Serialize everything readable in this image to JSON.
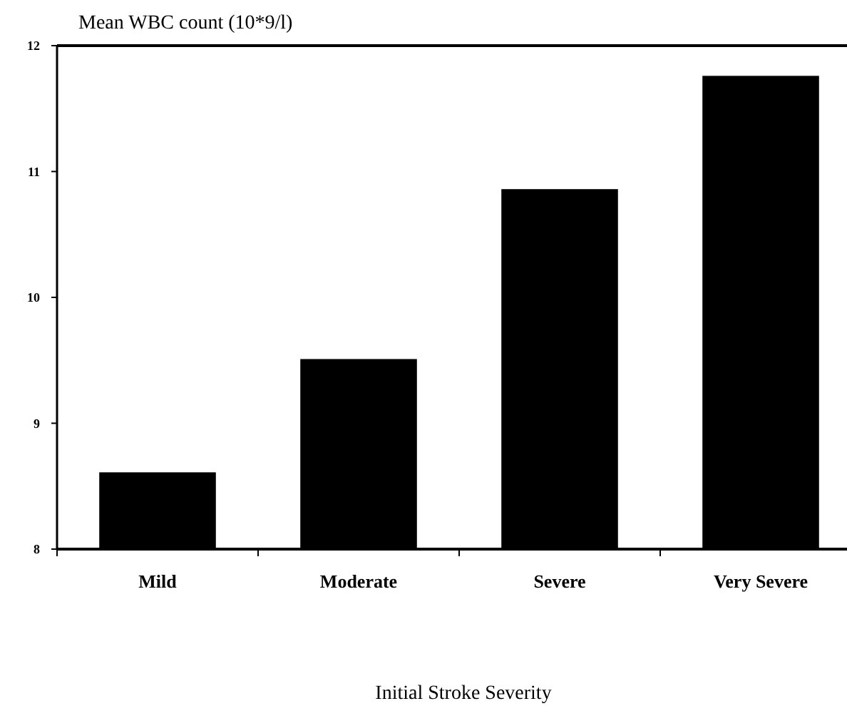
{
  "chart_data": {
    "type": "bar",
    "ylabel": "Mean WBC count (10*9/l)",
    "xlabel": "Initial Stroke Severity",
    "categories": [
      "Mild",
      "Moderate",
      "Severe",
      "Very Severe"
    ],
    "values": [
      8.61,
      9.51,
      10.86,
      11.76
    ],
    "color": "#000000",
    "ylim": [
      8,
      12
    ],
    "yticks": [
      8,
      9,
      10,
      11,
      12
    ],
    "grid": false
  }
}
